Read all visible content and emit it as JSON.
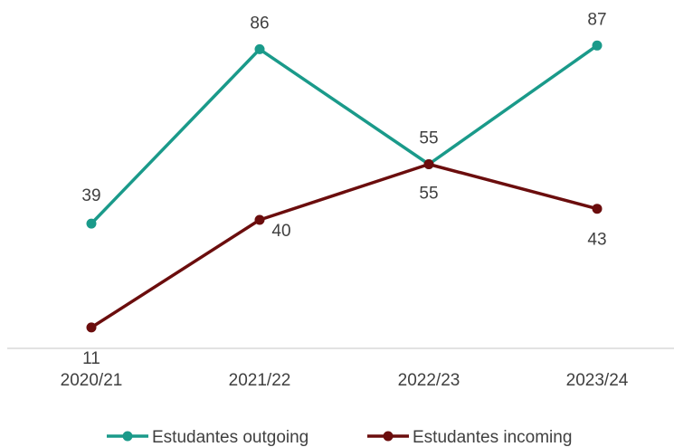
{
  "chart_data": {
    "type": "line",
    "title": "",
    "xlabel": "",
    "ylabel": "",
    "categories": [
      "2020/21",
      "2021/22",
      "2022/23",
      "2023/24"
    ],
    "ylim": [
      0,
      100
    ],
    "grid": false,
    "legend_position": "bottom",
    "series": [
      {
        "name": "Estudantes outgoing",
        "values": [
          39,
          86,
          55,
          87
        ],
        "color": "#1a9a8a"
      },
      {
        "name": "Estudantes incoming",
        "values": [
          11,
          40,
          55,
          43
        ],
        "color": "#6b0d0d"
      }
    ]
  }
}
